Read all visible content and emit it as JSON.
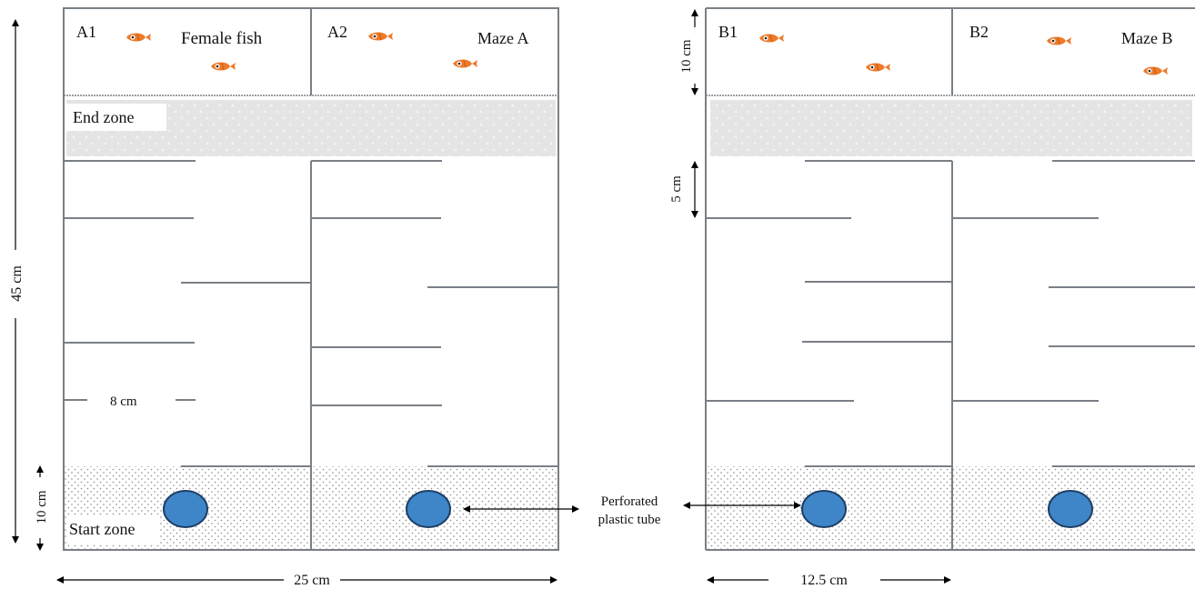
{
  "maze_a": {
    "compartment_1": "A1",
    "compartment_2": "A2",
    "female_label": "Female fish",
    "title": "Maze A",
    "end_zone": "End zone",
    "start_zone": "Start zone"
  },
  "maze_b": {
    "compartment_1": "B1",
    "compartment_2": "B2",
    "title": "Maze B"
  },
  "dimensions": {
    "height_total": "45 cm",
    "start_zone_height": "10 cm",
    "end_zone_height": "10 cm",
    "barrier_spacing": "5 cm",
    "barrier_length": "8 cm",
    "width_total": "25 cm",
    "width_half": "12.5 cm"
  },
  "tube_label_line1": "Perforated",
  "tube_label_line2": "plastic tube",
  "colors": {
    "wall": "#7a7f86",
    "zone_fill": "#e3e3e3",
    "tube_fill": "#3f86c8",
    "tube_stroke": "#1e3f66",
    "fish_body": "#ee7a2a",
    "arrow": "#000000"
  },
  "icons": {
    "fish": "fish-icon",
    "tube": "tube-icon",
    "arrow": "double-arrow-icon"
  }
}
